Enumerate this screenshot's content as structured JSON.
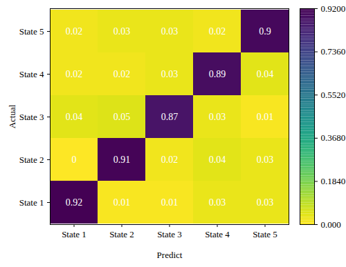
{
  "chart_data": {
    "type": "heatmap",
    "xlabel": "Predict",
    "ylabel": "Actual",
    "x_categories": [
      "State 1",
      "State 2",
      "State 3",
      "State 4",
      "State 5"
    ],
    "y_categories": [
      "State 1",
      "State 2",
      "State 3",
      "State 4",
      "State 5"
    ],
    "cells": [
      [
        0.92,
        0.01,
        0.01,
        0.03,
        0.03
      ],
      [
        0,
        0.91,
        0.02,
        0.04,
        0.03
      ],
      [
        0.04,
        0.05,
        0.87,
        0.03,
        0.01
      ],
      [
        0.02,
        0.02,
        0.03,
        0.89,
        0.04
      ],
      [
        0.02,
        0.03,
        0.03,
        0.02,
        0.9
      ]
    ],
    "data_labels": true,
    "colorbar": {
      "range": [
        0,
        0.92
      ],
      "ticks": [
        {
          "value": 0,
          "label": "0.000"
        },
        {
          "value": 0.184,
          "label": "0.1840"
        },
        {
          "value": 0.368,
          "label": "0.3680"
        },
        {
          "value": 0.552,
          "label": "0.5520"
        },
        {
          "value": 0.736,
          "label": "0.7360"
        },
        {
          "value": 0.92,
          "label": "0.9200"
        }
      ]
    }
  }
}
